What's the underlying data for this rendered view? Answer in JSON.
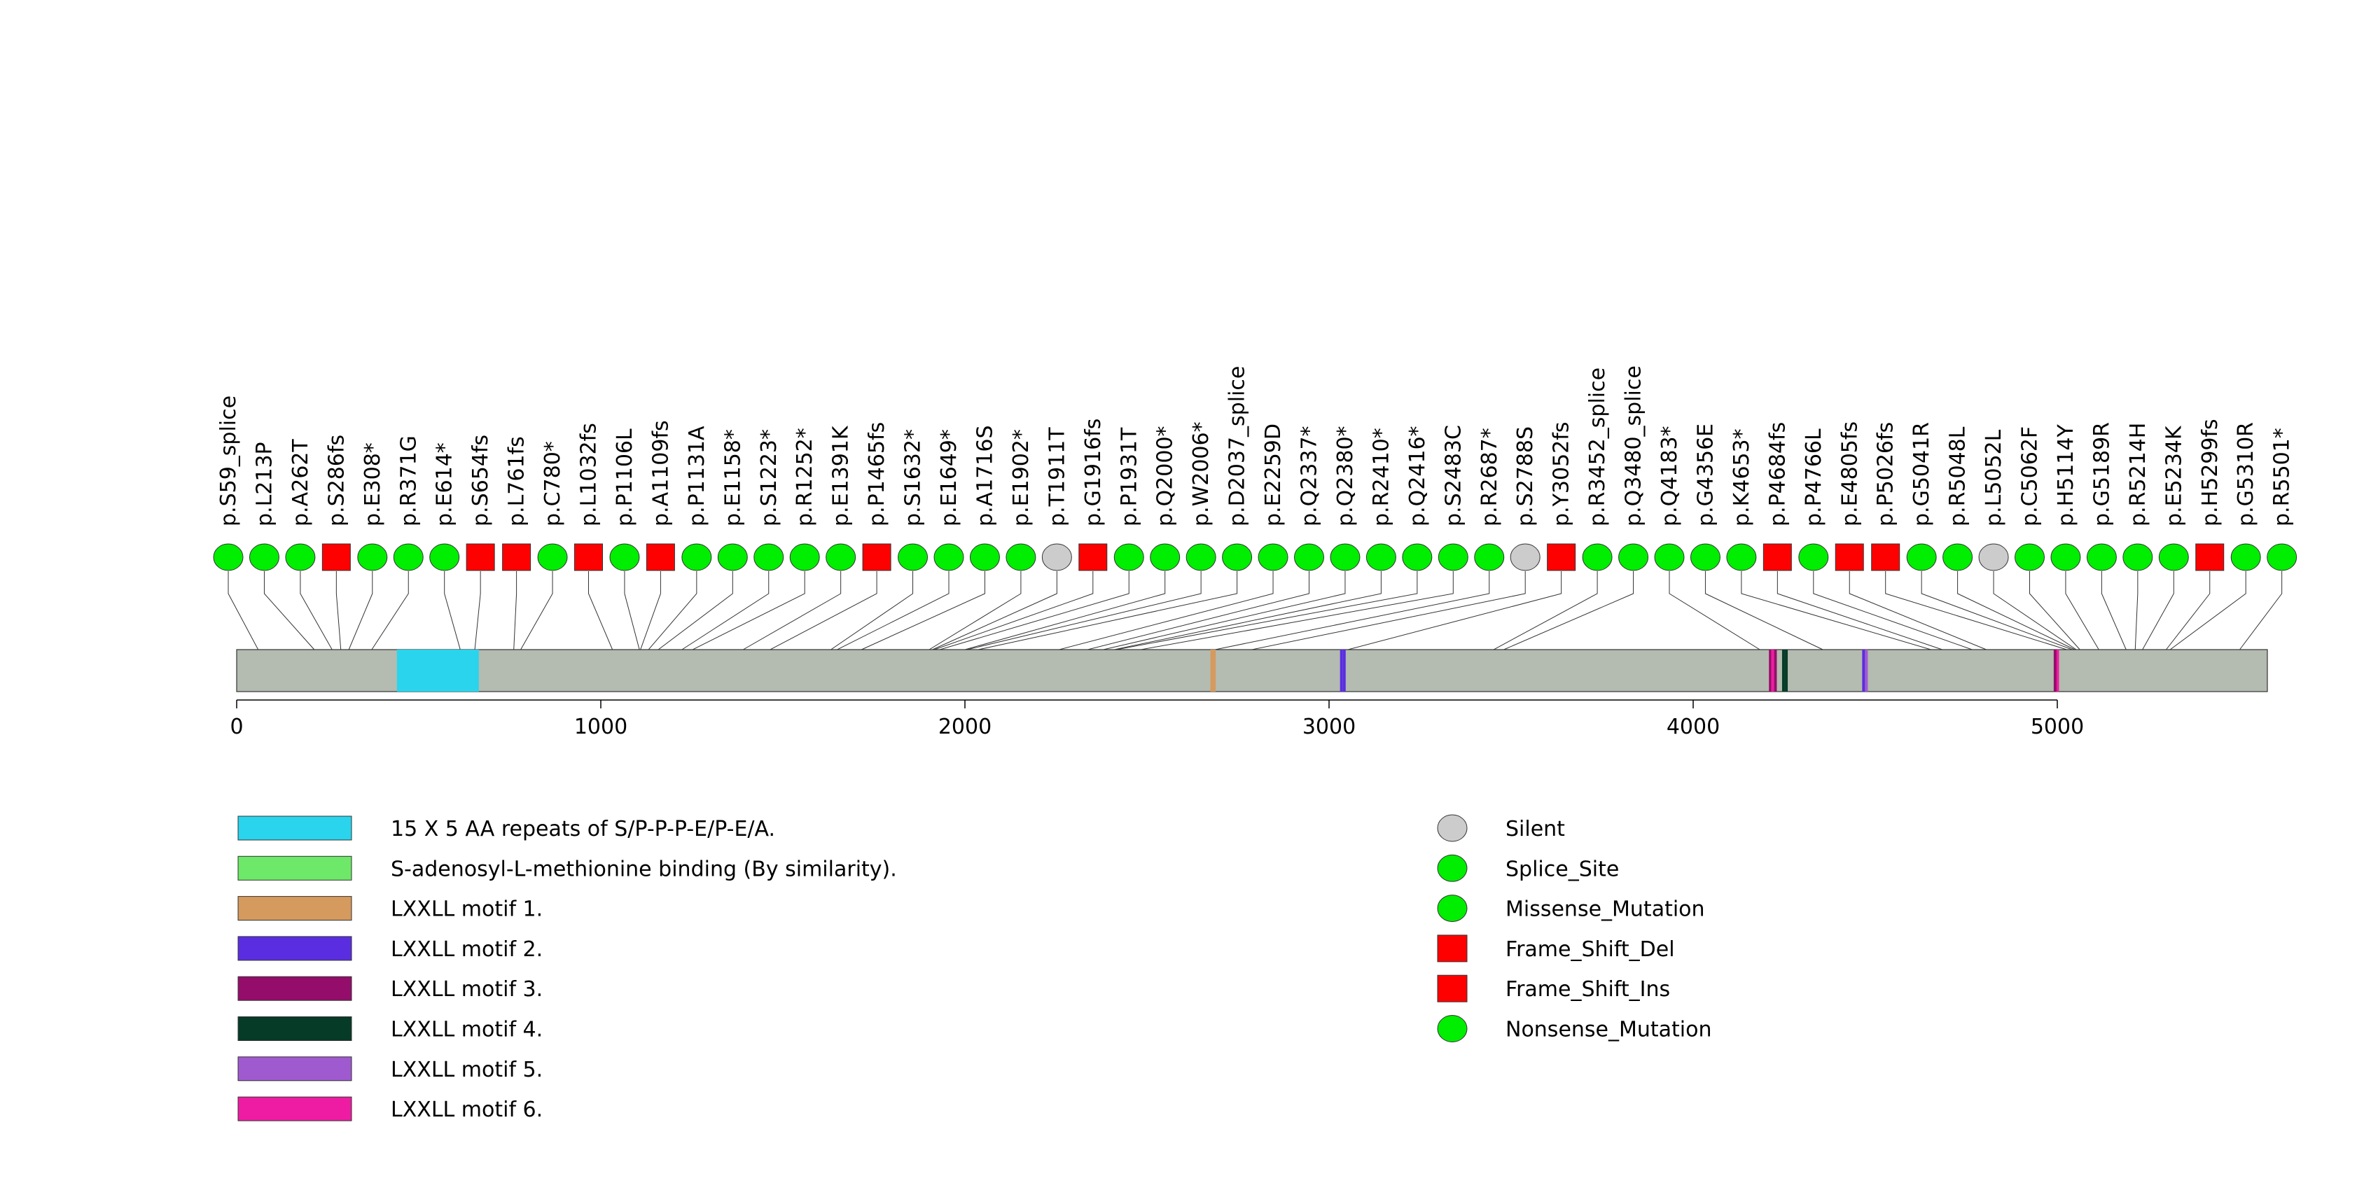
{
  "chart_data": {
    "type": "lollipop",
    "protein_length": 5537,
    "x_ticks": [
      0,
      1000,
      2000,
      3000,
      4000,
      5000
    ],
    "x_tick_labels": [
      "0",
      "1000",
      "2000",
      "3000",
      "4000",
      "5000"
    ],
    "mutations": [
      {
        "label": "p.S59_splice",
        "pos": 59,
        "type": "Splice_Site"
      },
      {
        "label": "p.L213P",
        "pos": 213,
        "type": "Missense_Mutation"
      },
      {
        "label": "p.A262T",
        "pos": 262,
        "type": "Missense_Mutation"
      },
      {
        "label": "p.S286fs",
        "pos": 286,
        "type": "Frame_Shift_Del"
      },
      {
        "label": "p.E308*",
        "pos": 308,
        "type": "Nonsense_Mutation"
      },
      {
        "label": "p.R371G",
        "pos": 371,
        "type": "Missense_Mutation"
      },
      {
        "label": "p.E614*",
        "pos": 614,
        "type": "Nonsense_Mutation"
      },
      {
        "label": "p.S654fs",
        "pos": 654,
        "type": "Frame_Shift_Del"
      },
      {
        "label": "p.L761fs",
        "pos": 761,
        "type": "Frame_Shift_Del"
      },
      {
        "label": "p.C780*",
        "pos": 780,
        "type": "Nonsense_Mutation"
      },
      {
        "label": "p.L1032fs",
        "pos": 1032,
        "type": "Frame_Shift_Del"
      },
      {
        "label": "p.P1106L",
        "pos": 1106,
        "type": "Missense_Mutation"
      },
      {
        "label": "p.A1109fs",
        "pos": 1109,
        "type": "Frame_Shift_Del"
      },
      {
        "label": "p.P1131A",
        "pos": 1131,
        "type": "Missense_Mutation"
      },
      {
        "label": "p.E1158*",
        "pos": 1158,
        "type": "Nonsense_Mutation"
      },
      {
        "label": "p.S1223*",
        "pos": 1223,
        "type": "Nonsense_Mutation"
      },
      {
        "label": "p.R1252*",
        "pos": 1252,
        "type": "Nonsense_Mutation"
      },
      {
        "label": "p.E1391K",
        "pos": 1391,
        "type": "Missense_Mutation"
      },
      {
        "label": "p.P1465fs",
        "pos": 1465,
        "type": "Frame_Shift_Del"
      },
      {
        "label": "p.S1632*",
        "pos": 1632,
        "type": "Nonsense_Mutation"
      },
      {
        "label": "p.E1649*",
        "pos": 1649,
        "type": "Nonsense_Mutation"
      },
      {
        "label": "p.A1716S",
        "pos": 1716,
        "type": "Missense_Mutation"
      },
      {
        "label": "p.E1902*",
        "pos": 1902,
        "type": "Nonsense_Mutation"
      },
      {
        "label": "p.T1911T",
        "pos": 1911,
        "type": "Silent"
      },
      {
        "label": "p.G1916fs",
        "pos": 1916,
        "type": "Frame_Shift_Del"
      },
      {
        "label": "p.P1931T",
        "pos": 1931,
        "type": "Missense_Mutation"
      },
      {
        "label": "p.Q2000*",
        "pos": 2000,
        "type": "Nonsense_Mutation"
      },
      {
        "label": "p.W2006*",
        "pos": 2006,
        "type": "Nonsense_Mutation"
      },
      {
        "label": "p.D2037_splice",
        "pos": 2037,
        "type": "Splice_Site"
      },
      {
        "label": "p.E2259D",
        "pos": 2259,
        "type": "Missense_Mutation"
      },
      {
        "label": "p.Q2337*",
        "pos": 2337,
        "type": "Nonsense_Mutation"
      },
      {
        "label": "p.Q2380*",
        "pos": 2380,
        "type": "Nonsense_Mutation"
      },
      {
        "label": "p.R2410*",
        "pos": 2410,
        "type": "Nonsense_Mutation"
      },
      {
        "label": "p.Q2416*",
        "pos": 2416,
        "type": "Nonsense_Mutation"
      },
      {
        "label": "p.S2483C",
        "pos": 2483,
        "type": "Missense_Mutation"
      },
      {
        "label": "p.R2687*",
        "pos": 2687,
        "type": "Nonsense_Mutation"
      },
      {
        "label": "p.S2788S",
        "pos": 2788,
        "type": "Silent"
      },
      {
        "label": "p.Y3052fs",
        "pos": 3052,
        "type": "Frame_Shift_Del"
      },
      {
        "label": "p.R3452_splice",
        "pos": 3452,
        "type": "Splice_Site"
      },
      {
        "label": "p.Q3480_splice",
        "pos": 3480,
        "type": "Splice_Site"
      },
      {
        "label": "p.Q4183*",
        "pos": 4183,
        "type": "Nonsense_Mutation"
      },
      {
        "label": "p.G4356E",
        "pos": 4356,
        "type": "Missense_Mutation"
      },
      {
        "label": "p.K4653*",
        "pos": 4653,
        "type": "Nonsense_Mutation"
      },
      {
        "label": "p.P4684fs",
        "pos": 4684,
        "type": "Frame_Shift_Del"
      },
      {
        "label": "p.P4766L",
        "pos": 4766,
        "type": "Missense_Mutation"
      },
      {
        "label": "p.E4805fs",
        "pos": 4805,
        "type": "Frame_Shift_Del"
      },
      {
        "label": "p.P5026fs",
        "pos": 5026,
        "type": "Frame_Shift_Del"
      },
      {
        "label": "p.G5041R",
        "pos": 5041,
        "type": "Missense_Mutation"
      },
      {
        "label": "p.R5048L",
        "pos": 5048,
        "type": "Missense_Mutation"
      },
      {
        "label": "p.L5052L",
        "pos": 5052,
        "type": "Silent"
      },
      {
        "label": "p.C5062F",
        "pos": 5062,
        "type": "Missense_Mutation"
      },
      {
        "label": "p.H5114Y",
        "pos": 5114,
        "type": "Missense_Mutation"
      },
      {
        "label": "p.G5189R",
        "pos": 5189,
        "type": "Missense_Mutation"
      },
      {
        "label": "p.R5214H",
        "pos": 5214,
        "type": "Missense_Mutation"
      },
      {
        "label": "p.E5234K",
        "pos": 5234,
        "type": "Missense_Mutation"
      },
      {
        "label": "p.H5299fs",
        "pos": 5299,
        "type": "Frame_Shift_Del"
      },
      {
        "label": "p.G5310R",
        "pos": 5310,
        "type": "Missense_Mutation"
      },
      {
        "label": "p.R5501*",
        "pos": 5501,
        "type": "Nonsense_Mutation"
      }
    ],
    "domains": [
      {
        "name": "15 X 5 AA repeats of S/P-P-P-E/P-E/A.",
        "start": 440,
        "end": 665,
        "color": "#2ad4ec"
      },
      {
        "name": "S-adenosyl-L-methionine binding (By similarity).",
        "start": null,
        "end": null,
        "color": "#6ee868"
      },
      {
        "name": "LXXLL motif 1.",
        "start": 2681,
        "end": 2685,
        "color": "#d59a5e"
      },
      {
        "name": "LXXLL motif 2.",
        "start": 3038,
        "end": 3042,
        "color": "#5a2ee0"
      },
      {
        "name": "LXXLL motif 3.",
        "start": 4222,
        "end": 4226,
        "color": "#950d6a"
      },
      {
        "name": "LXXLL motif 4.",
        "start": 4252,
        "end": 4256,
        "color": "#063b28"
      },
      {
        "name": "LXXLL motif 5.",
        "start": 4472,
        "end": 4476,
        "color": "#a05ad0"
      },
      {
        "name": "LXXLL motif 6.",
        "start": 4997,
        "end": 5001,
        "color": "#ee1ca2"
      }
    ],
    "site_marks": [
      {
        "pos": 4212,
        "color": "#950d6a"
      },
      {
        "pos": 4218,
        "color": "#ee1ca2"
      },
      {
        "pos": 4248,
        "color": "#063b28"
      },
      {
        "pos": 4468,
        "color": "#5a2ee0"
      },
      {
        "pos": 4994,
        "color": "#950d6a"
      },
      {
        "pos": 3034,
        "color": "#5a2ee0"
      },
      {
        "pos": 2678,
        "color": "#d59a5e"
      }
    ],
    "legend_domains": [
      {
        "label": "15 X 5 AA repeats of S/P-P-P-E/P-E/A.",
        "color": "#2ad4ec"
      },
      {
        "label": "S-adenosyl-L-methionine binding (By similarity).",
        "color": "#6ee868"
      },
      {
        "label": "LXXLL motif 1.",
        "color": "#d59a5e"
      },
      {
        "label": "LXXLL motif 2.",
        "color": "#5a2ee0"
      },
      {
        "label": "LXXLL motif 3.",
        "color": "#950d6a"
      },
      {
        "label": "LXXLL motif 4.",
        "color": "#063b28"
      },
      {
        "label": "LXXLL motif 5.",
        "color": "#a05ad0"
      },
      {
        "label": "LXXLL motif 6.",
        "color": "#ee1ca2"
      }
    ],
    "legend_types": [
      {
        "label": "Silent",
        "shape": "circle",
        "color": "#cccccc"
      },
      {
        "label": "Splice_Site",
        "shape": "circle",
        "color": "#00ee00"
      },
      {
        "label": "Missense_Mutation",
        "shape": "circle",
        "color": "#00ee00"
      },
      {
        "label": "Frame_Shift_Del",
        "shape": "square",
        "color": "#ff0000"
      },
      {
        "label": "Frame_Shift_Ins",
        "shape": "square",
        "color": "#ff0000"
      },
      {
        "label": "Nonsense_Mutation",
        "shape": "circle",
        "color": "#00ee00"
      }
    ],
    "colors": {
      "backbone": "#b4bbb0",
      "silent": "#cccccc",
      "green": "#00ee00",
      "red": "#ff0000",
      "stroke": "#333333"
    }
  }
}
